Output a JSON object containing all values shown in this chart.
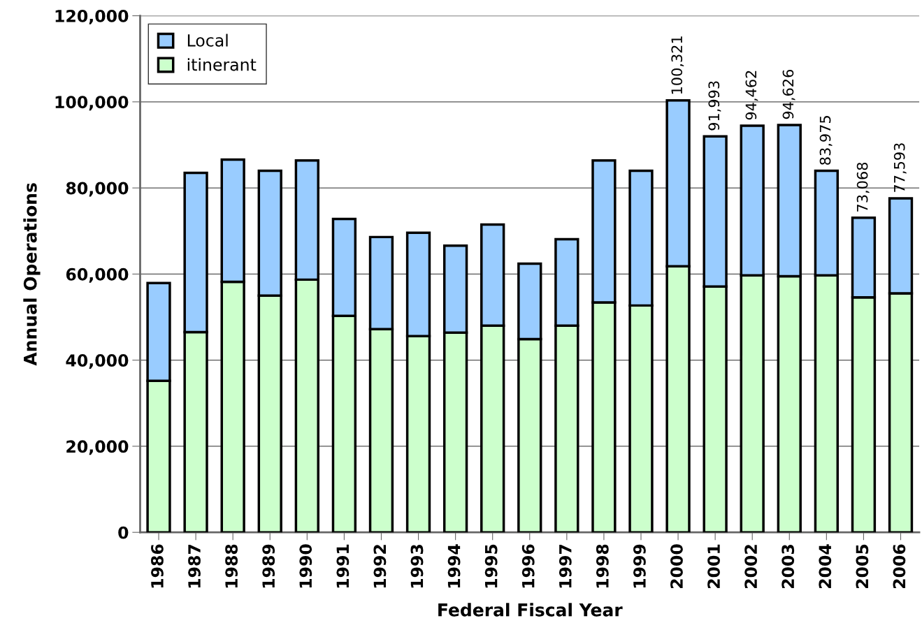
{
  "chart_data": {
    "type": "bar",
    "stacked": true,
    "xlabel": "Federal Fiscal Year",
    "ylabel": "Annual Operations",
    "categories": [
      "1986",
      "1987",
      "1988",
      "1989",
      "1990",
      "1991",
      "1992",
      "1993",
      "1994",
      "1995",
      "1996",
      "1997",
      "1998",
      "1999",
      "2000",
      "2001",
      "2002",
      "2003",
      "2004",
      "2005",
      "2006"
    ],
    "series": [
      {
        "name": "itinerant",
        "color": "#ccffcc",
        "values": [
          35200,
          46500,
          58200,
          55000,
          58700,
          50300,
          47200,
          45600,
          46400,
          48000,
          44900,
          48000,
          53400,
          52700,
          61800,
          57100,
          59700,
          59500,
          59700,
          54600,
          55500
        ]
      },
      {
        "name": "Local",
        "color": "#99ccff",
        "values": [
          22700,
          37000,
          28400,
          29000,
          27700,
          22500,
          21400,
          24000,
          20200,
          23500,
          17500,
          20100,
          33000,
          31300,
          38521,
          34893,
          34762,
          35126,
          24275,
          18468,
          22093
        ]
      }
    ],
    "totals": [
      null,
      null,
      null,
      null,
      null,
      null,
      null,
      null,
      null,
      null,
      null,
      null,
      null,
      null,
      "100,321",
      "91,993",
      "94,462",
      "94,626",
      "83,975",
      "73,068",
      "77,593"
    ],
    "ylim": [
      0,
      120000
    ],
    "yticks": [
      0,
      {
        "value": 20000,
        "label": "20,000"
      },
      {
        "value": 40000,
        "label": "40,000"
      },
      {
        "value": 60000,
        "label": "60,000"
      },
      {
        "value": 80000,
        "label": "80,000"
      },
      {
        "value": 100000,
        "label": "100,000"
      },
      {
        "value": 120000,
        "label": "120,000"
      }
    ],
    "grid": "y",
    "legend": "top left"
  }
}
